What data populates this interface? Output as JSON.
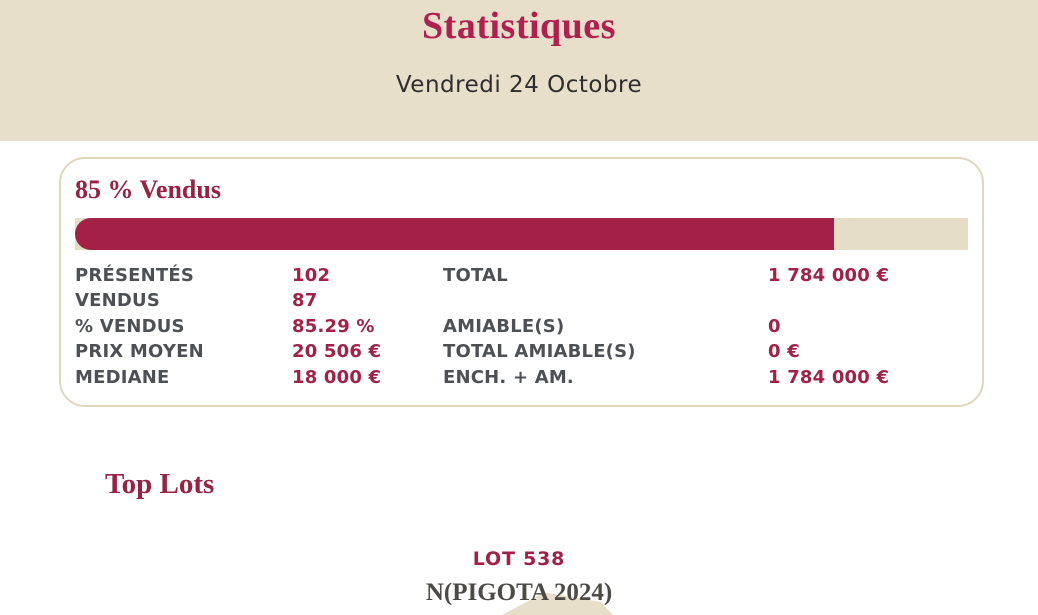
{
  "header": {
    "title": "Statistiques",
    "subtitle": "Vendredi 24 Octobre"
  },
  "card": {
    "heading": "85 % Vendus",
    "progress_percent": 85,
    "stats_left": [
      {
        "label": "PRÉSENTÉS",
        "value": "102"
      },
      {
        "label": "VENDUS",
        "value": "87"
      },
      {
        "label": "% VENDUS",
        "value": "85.29 %"
      },
      {
        "label": "PRIX MOYEN",
        "value": "20 506 €"
      },
      {
        "label": "MEDIANE",
        "value": "18 000 €"
      }
    ],
    "stats_right": [
      {
        "label": "TOTAL",
        "value": "1 784 000 €"
      },
      {
        "label": "",
        "value": ""
      },
      {
        "label": "AMIABLE(S)",
        "value": "0"
      },
      {
        "label": "TOTAL AMIABLE(S)",
        "value": "0 €"
      },
      {
        "label": "ENCH. + AM.",
        "value": "1 784 000 €"
      }
    ]
  },
  "top_lots": {
    "heading": "Top Lots",
    "lot_number": "LOT 538",
    "lot_name": "N(PIGOTA 2024)"
  },
  "colors": {
    "title": "#b01f4e",
    "heading_serif": "#992142",
    "accent": "#a32047",
    "label_gray": "#4d5156",
    "lot_name_gray": "#4b4a44",
    "beige": "#e8dfca",
    "track": "#e6ddc7",
    "border": "#e0d7bf",
    "page_bg": "#ffffff"
  }
}
